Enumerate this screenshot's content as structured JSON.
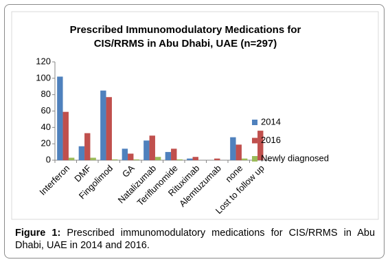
{
  "chart_data": {
    "type": "bar",
    "title": [
      "Prescribed Immunomodulatory Medications for",
      "CIS/RRMS in Abu Dhabi, UAE (n=297)"
    ],
    "categories": [
      "Interferon",
      "DMF",
      "Fingolimod",
      "GA",
      "Natalizumab",
      "Teriflunomide",
      "Rituximab",
      "Alemtuzumab",
      "none",
      "Lost to follow up"
    ],
    "series": [
      {
        "name": "2014",
        "color": "#4f81bd",
        "values": [
          102,
          17,
          85,
          14,
          24,
          10,
          2,
          0,
          28,
          0
        ]
      },
      {
        "name": "2016",
        "color": "#c0504d",
        "values": [
          59,
          33,
          77,
          8,
          30,
          14,
          4,
          2,
          19,
          36
        ]
      },
      {
        "name": "Newly diagnosed",
        "color": "#9bbb59",
        "values": [
          3,
          3,
          1,
          1,
          4,
          1,
          0,
          0,
          2,
          0
        ]
      }
    ],
    "ylim": [
      0,
      120
    ],
    "yticks": [
      0,
      20,
      40,
      60,
      80,
      100,
      120
    ],
    "grid": false,
    "legend": "right"
  },
  "caption": {
    "label": "Figure 1:",
    "text": "Prescribed immunomodulatory medications for CIS/RRMS in Abu Dhabi, UAE in 2014 and 2016."
  }
}
